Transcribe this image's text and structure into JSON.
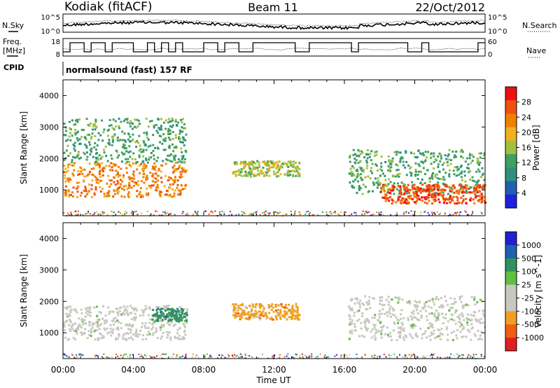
{
  "header": {
    "station": "Kodiak (fitACF)",
    "beam": "Beam 11",
    "date": "22/Oct/2012"
  },
  "housekeeping": {
    "nsky_label": "N.Sky",
    "nsearch_label": "N.Search",
    "noise_ticks_left": [
      "10^5",
      "10^0"
    ],
    "noise_ticks_right": [
      "10^5",
      "10^0"
    ],
    "freq_label_line1": "Freq.",
    "freq_label_line2": "[MHz]",
    "freq_ticks": [
      "18",
      "8"
    ],
    "nave_label": "Nave",
    "nave_ticks": [
      "60",
      "0"
    ],
    "cpid_label": "CPID",
    "cpid_text": "normalsound (fast) 157 RF"
  },
  "chart_data": [
    {
      "type": "heatmap",
      "name": "Power",
      "ylabel": "Slant Range [km]",
      "xlabel": "Time UT",
      "xlim": [
        "00:00",
        "24:00"
      ],
      "ylim": [
        180,
        4500
      ],
      "x_ticks": [
        "00:00",
        "04:00",
        "08:00",
        "12:00",
        "16:00",
        "20:00",
        "00:00"
      ],
      "y_ticks": [
        1000,
        2000,
        3000,
        4000
      ],
      "colorbar": {
        "label": "Power [dB]",
        "ticks": [
          "28",
          "24",
          "20",
          "16",
          "12",
          "8",
          "4"
        ],
        "colors": [
          "#ee1010",
          "#f05010",
          "#f08000",
          "#f0b020",
          "#a0c040",
          "#40a060",
          "#309080",
          "#2060b0",
          "#2020e0"
        ]
      },
      "regions": [
        {
          "t0": 0.0,
          "t1": 7.0,
          "r0": 800,
          "r1": 1900,
          "value": 22
        },
        {
          "t0": 0.0,
          "t1": 7.0,
          "r0": 1900,
          "r1": 3300,
          "value": 10
        },
        {
          "t0": 9.6,
          "t1": 13.4,
          "r0": 1450,
          "r1": 1950,
          "value": 14
        },
        {
          "t0": 16.2,
          "t1": 24.0,
          "r0": 900,
          "r1": 2300,
          "value": 10
        },
        {
          "t0": 18.0,
          "t1": 24.0,
          "r0": 600,
          "r1": 1200,
          "value": 26
        }
      ]
    },
    {
      "type": "heatmap",
      "name": "Velocity",
      "ylabel": "Slant Range [km]",
      "xlabel": "Time UT",
      "xlim": [
        "00:00",
        "24:00"
      ],
      "ylim": [
        180,
        4500
      ],
      "x_ticks": [
        "00:00",
        "04:00",
        "08:00",
        "12:00",
        "16:00",
        "20:00",
        "00:00"
      ],
      "y_ticks": [
        1000,
        2000,
        3000,
        4000
      ],
      "colorbar": {
        "label": "Velocity [m s^-1]",
        "ticks": [
          "1000",
          "500",
          "100",
          "25",
          "-25",
          "-100",
          "-500",
          "-1000"
        ],
        "colors": [
          "#2020d0",
          "#2060b0",
          "#309060",
          "#60c040",
          "#c8c8c0",
          "#c8c8c0",
          "#f0a020",
          "#f06010",
          "#e02020"
        ]
      },
      "regions": [
        {
          "t0": 0.0,
          "t1": 7.0,
          "r0": 800,
          "r1": 1900,
          "value": 0
        },
        {
          "t0": 5.0,
          "t1": 7.0,
          "r0": 1400,
          "r1": 1800,
          "value": 150
        },
        {
          "t0": 9.6,
          "t1": 13.4,
          "r0": 1450,
          "r1": 1950,
          "value": -300
        },
        {
          "t0": 16.2,
          "t1": 24.0,
          "r0": 800,
          "r1": 2200,
          "value": 0
        }
      ]
    }
  ]
}
